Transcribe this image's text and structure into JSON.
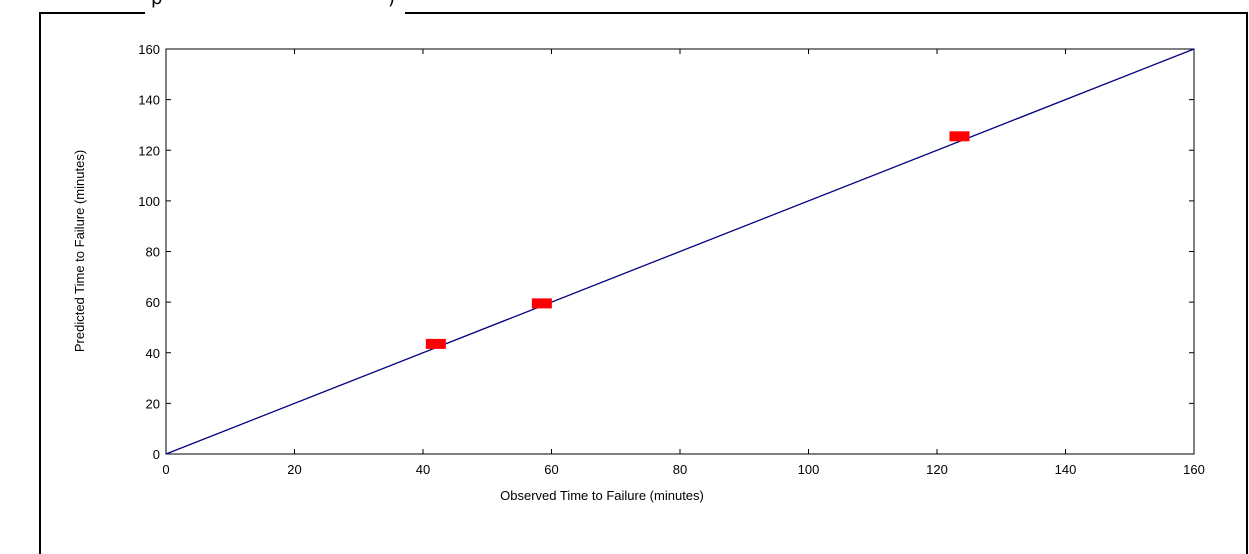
{
  "chart_data": {
    "type": "scatter",
    "xlabel": "Observed Time to Failure (minutes)",
    "ylabel": "Predicted Time to Failure (minutes)",
    "xlim": [
      0,
      160
    ],
    "ylim": [
      0,
      160
    ],
    "x_ticks": [
      0,
      20,
      40,
      60,
      80,
      100,
      120,
      140,
      160
    ],
    "y_ticks": [
      0,
      20,
      40,
      60,
      80,
      100,
      120,
      140,
      160
    ],
    "grid": false,
    "series": [
      {
        "kind": "points",
        "marker": "rectangle",
        "color": "#ff0000",
        "x": [
          42,
          58.5,
          123.5
        ],
        "y": [
          43.5,
          59.5,
          125.5
        ]
      },
      {
        "kind": "line",
        "color": "#000080",
        "x": [
          0,
          160
        ],
        "y": [
          0,
          160
        ]
      }
    ]
  }
}
